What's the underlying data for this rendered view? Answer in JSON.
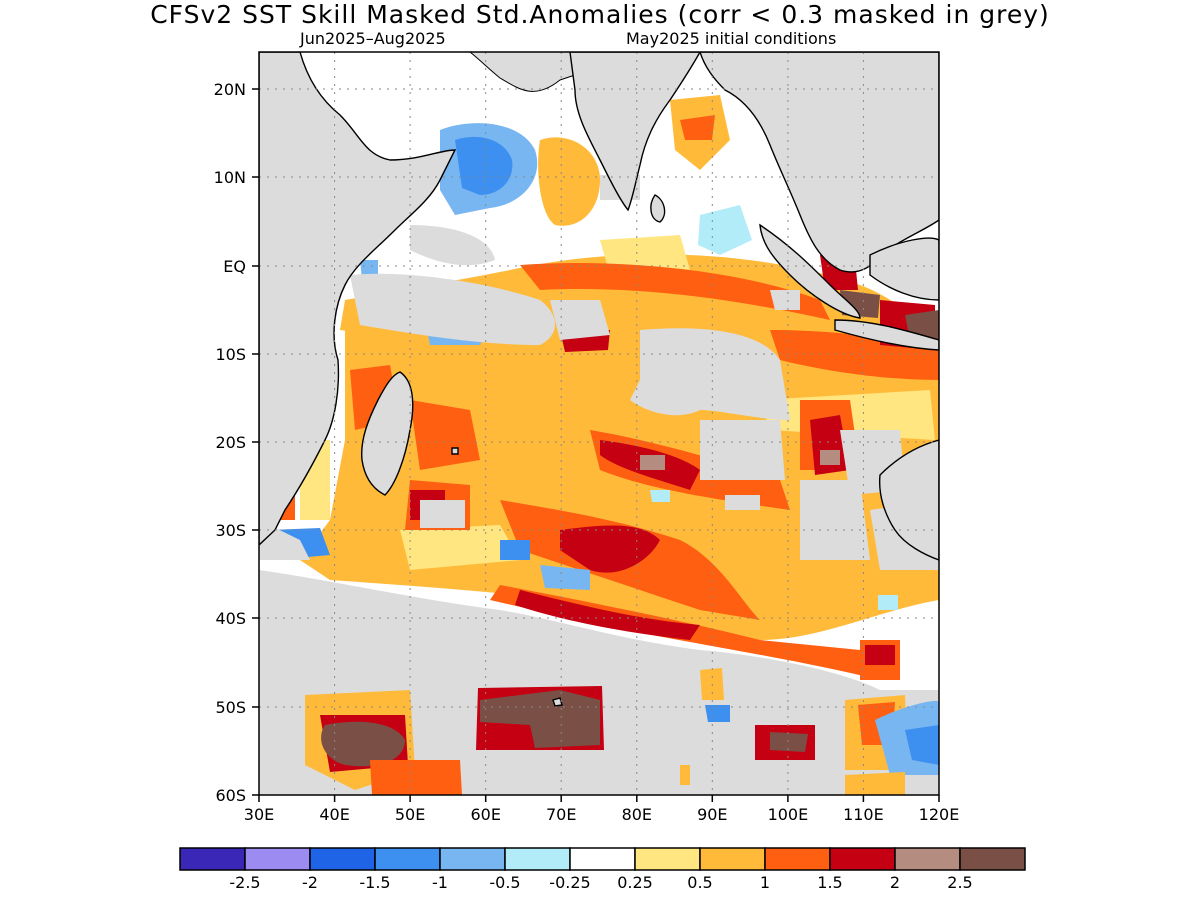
{
  "title": "CFSv2  SST Skill Masked Std.Anomalies (corr < 0.3 masked in grey)",
  "subtitle_left": "Jun2025–Aug2025",
  "subtitle_right": "May2025 initial conditions",
  "map": {
    "lon_range": [
      30,
      120
    ],
    "lat_range": [
      -60,
      24
    ],
    "lon_ticks": [
      "30E",
      "40E",
      "50E",
      "60E",
      "70E",
      "80E",
      "90E",
      "100E",
      "110E",
      "120E"
    ],
    "lat_ticks": [
      "20N",
      "10N",
      "EQ",
      "10S",
      "20S",
      "30S",
      "40S",
      "50S",
      "60S"
    ],
    "mask_color": "#dcdcdc",
    "land_color": "#dcdcdc"
  },
  "colorbar": {
    "colors": [
      "#3a27b8",
      "#9c8cf2",
      "#1f63e6",
      "#3d8ff0",
      "#78b6f2",
      "#b2ecf8",
      "#ffffff",
      "#ffe680",
      "#ffba3a",
      "#ff5f10",
      "#c40012",
      "#b58c80",
      "#7a5046"
    ],
    "labels": [
      "-2.5",
      "-2",
      "-1.5",
      "-1",
      "-0.5",
      "-0.25",
      "0.25",
      "0.5",
      "1",
      "1.5",
      "2",
      "2.5"
    ]
  }
}
